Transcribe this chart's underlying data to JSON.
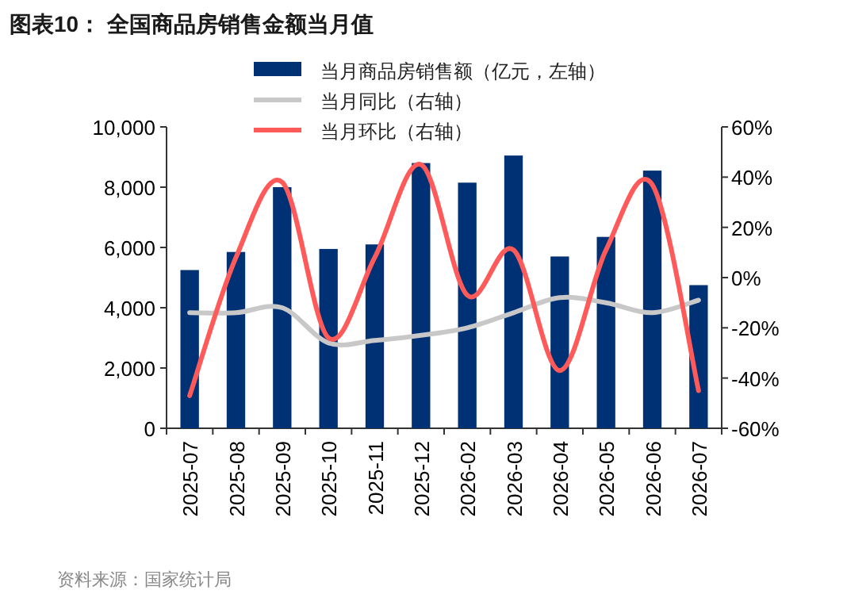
{
  "chart_data": {
    "type": "bar",
    "title": "图表10： 全国商品房销售金额当月值",
    "categories": [
      "2025-07",
      "2025-08",
      "2025-09",
      "2025-10",
      "2025-11",
      "2025-12",
      "2026-02",
      "2026-03",
      "2026-04",
      "2026-05",
      "2026-06",
      "2026-07"
    ],
    "series": [
      {
        "name": "当月商品房销售额（亿元，左轴）",
        "color": "#003174",
        "values": [
          5250,
          5850,
          8000,
          5950,
          6100,
          8800,
          8150,
          9050,
          5700,
          6350,
          8550,
          4750
        ]
      },
      {
        "name": "当月同比（右轴）",
        "type": "line",
        "axis": "y2",
        "color": "#c8c8c8",
        "values": [
          -14,
          -14,
          -12,
          -26,
          -25,
          -23,
          -20,
          -14,
          -8,
          -10,
          -14,
          -9
        ]
      },
      {
        "name": "当月环比（右轴）",
        "type": "line",
        "axis": "y2",
        "color": "#ff5a5a",
        "values": [
          -47,
          8,
          38,
          -24,
          8,
          45,
          -7,
          11,
          -37,
          11,
          37,
          -45
        ]
      }
    ],
    "ylim": [
      0,
      10000
    ],
    "yticks": [
      {
        "value": 0,
        "label": "0"
      },
      {
        "value": 2000,
        "label": "2,000"
      },
      {
        "value": 4000,
        "label": "4,000"
      },
      {
        "value": 6000,
        "label": "6,000"
      },
      {
        "value": 8000,
        "label": "8,000"
      },
      {
        "value": 10000,
        "label": "10,000"
      }
    ],
    "y2lim": [
      -60,
      60
    ],
    "y2ticks": [
      {
        "value": -60,
        "label": "-60%"
      },
      {
        "value": -40,
        "label": "-40%"
      },
      {
        "value": -20,
        "label": "-20%"
      },
      {
        "value": 0,
        "label": "0%"
      },
      {
        "value": 20,
        "label": "20%"
      },
      {
        "value": 40,
        "label": "40%"
      },
      {
        "value": 60,
        "label": "60%"
      }
    ],
    "legend": "top",
    "grid": false,
    "annotations": [
      "资料来源：国家统计局"
    ]
  }
}
